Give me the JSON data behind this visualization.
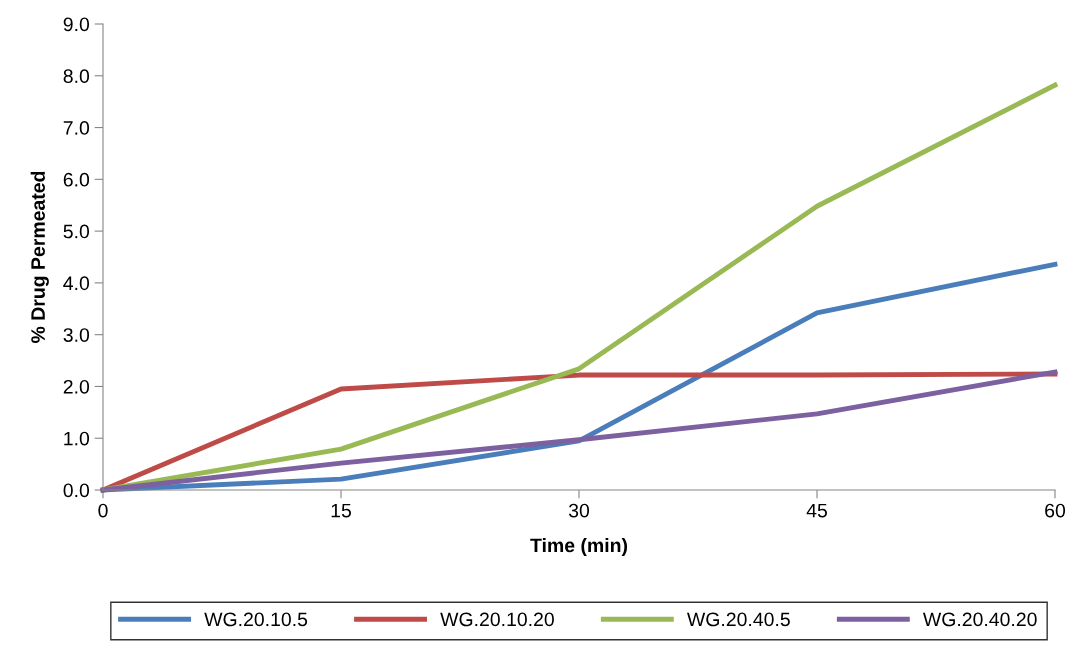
{
  "chart_data": {
    "type": "line",
    "xlabel": "Time (min)",
    "ylabel": "% Drug Permeated",
    "x": [
      0,
      15,
      30,
      45,
      60
    ],
    "series": [
      {
        "name": "WG.20.10.5",
        "color": "#4a7ebb",
        "values": [
          0,
          0.21,
          0.95,
          3.42,
          4.36
        ]
      },
      {
        "name": "WG.20.10.20",
        "color": "#be4b48",
        "values": [
          0,
          1.95,
          2.22,
          2.22,
          2.24
        ]
      },
      {
        "name": "WG.20.40.5",
        "color": "#98b954",
        "values": [
          0,
          0.79,
          2.34,
          5.48,
          7.82
        ]
      },
      {
        "name": "WG.20.40.20",
        "color": "#7d60a0",
        "values": [
          0,
          0.52,
          0.97,
          1.47,
          2.28
        ]
      }
    ],
    "xlim": [
      0,
      60
    ],
    "xticks": [
      0,
      15,
      30,
      45,
      60
    ],
    "ylim": [
      0,
      9
    ],
    "yticks": [
      {
        "value": 0,
        "label": "0.0"
      },
      {
        "value": 1,
        "label": "1.0"
      },
      {
        "value": 2,
        "label": "2.0"
      },
      {
        "value": 3,
        "label": "3.0"
      },
      {
        "value": 4,
        "label": "4.0"
      },
      {
        "value": 5,
        "label": "5.0"
      },
      {
        "value": 6,
        "label": "6.0"
      },
      {
        "value": 7,
        "label": "7.0"
      },
      {
        "value": 8,
        "label": "8.0"
      },
      {
        "value": 9,
        "label": "9.0"
      }
    ],
    "grid": false,
    "legend": "bottom",
    "marker": "none",
    "line_style": "solid"
  }
}
